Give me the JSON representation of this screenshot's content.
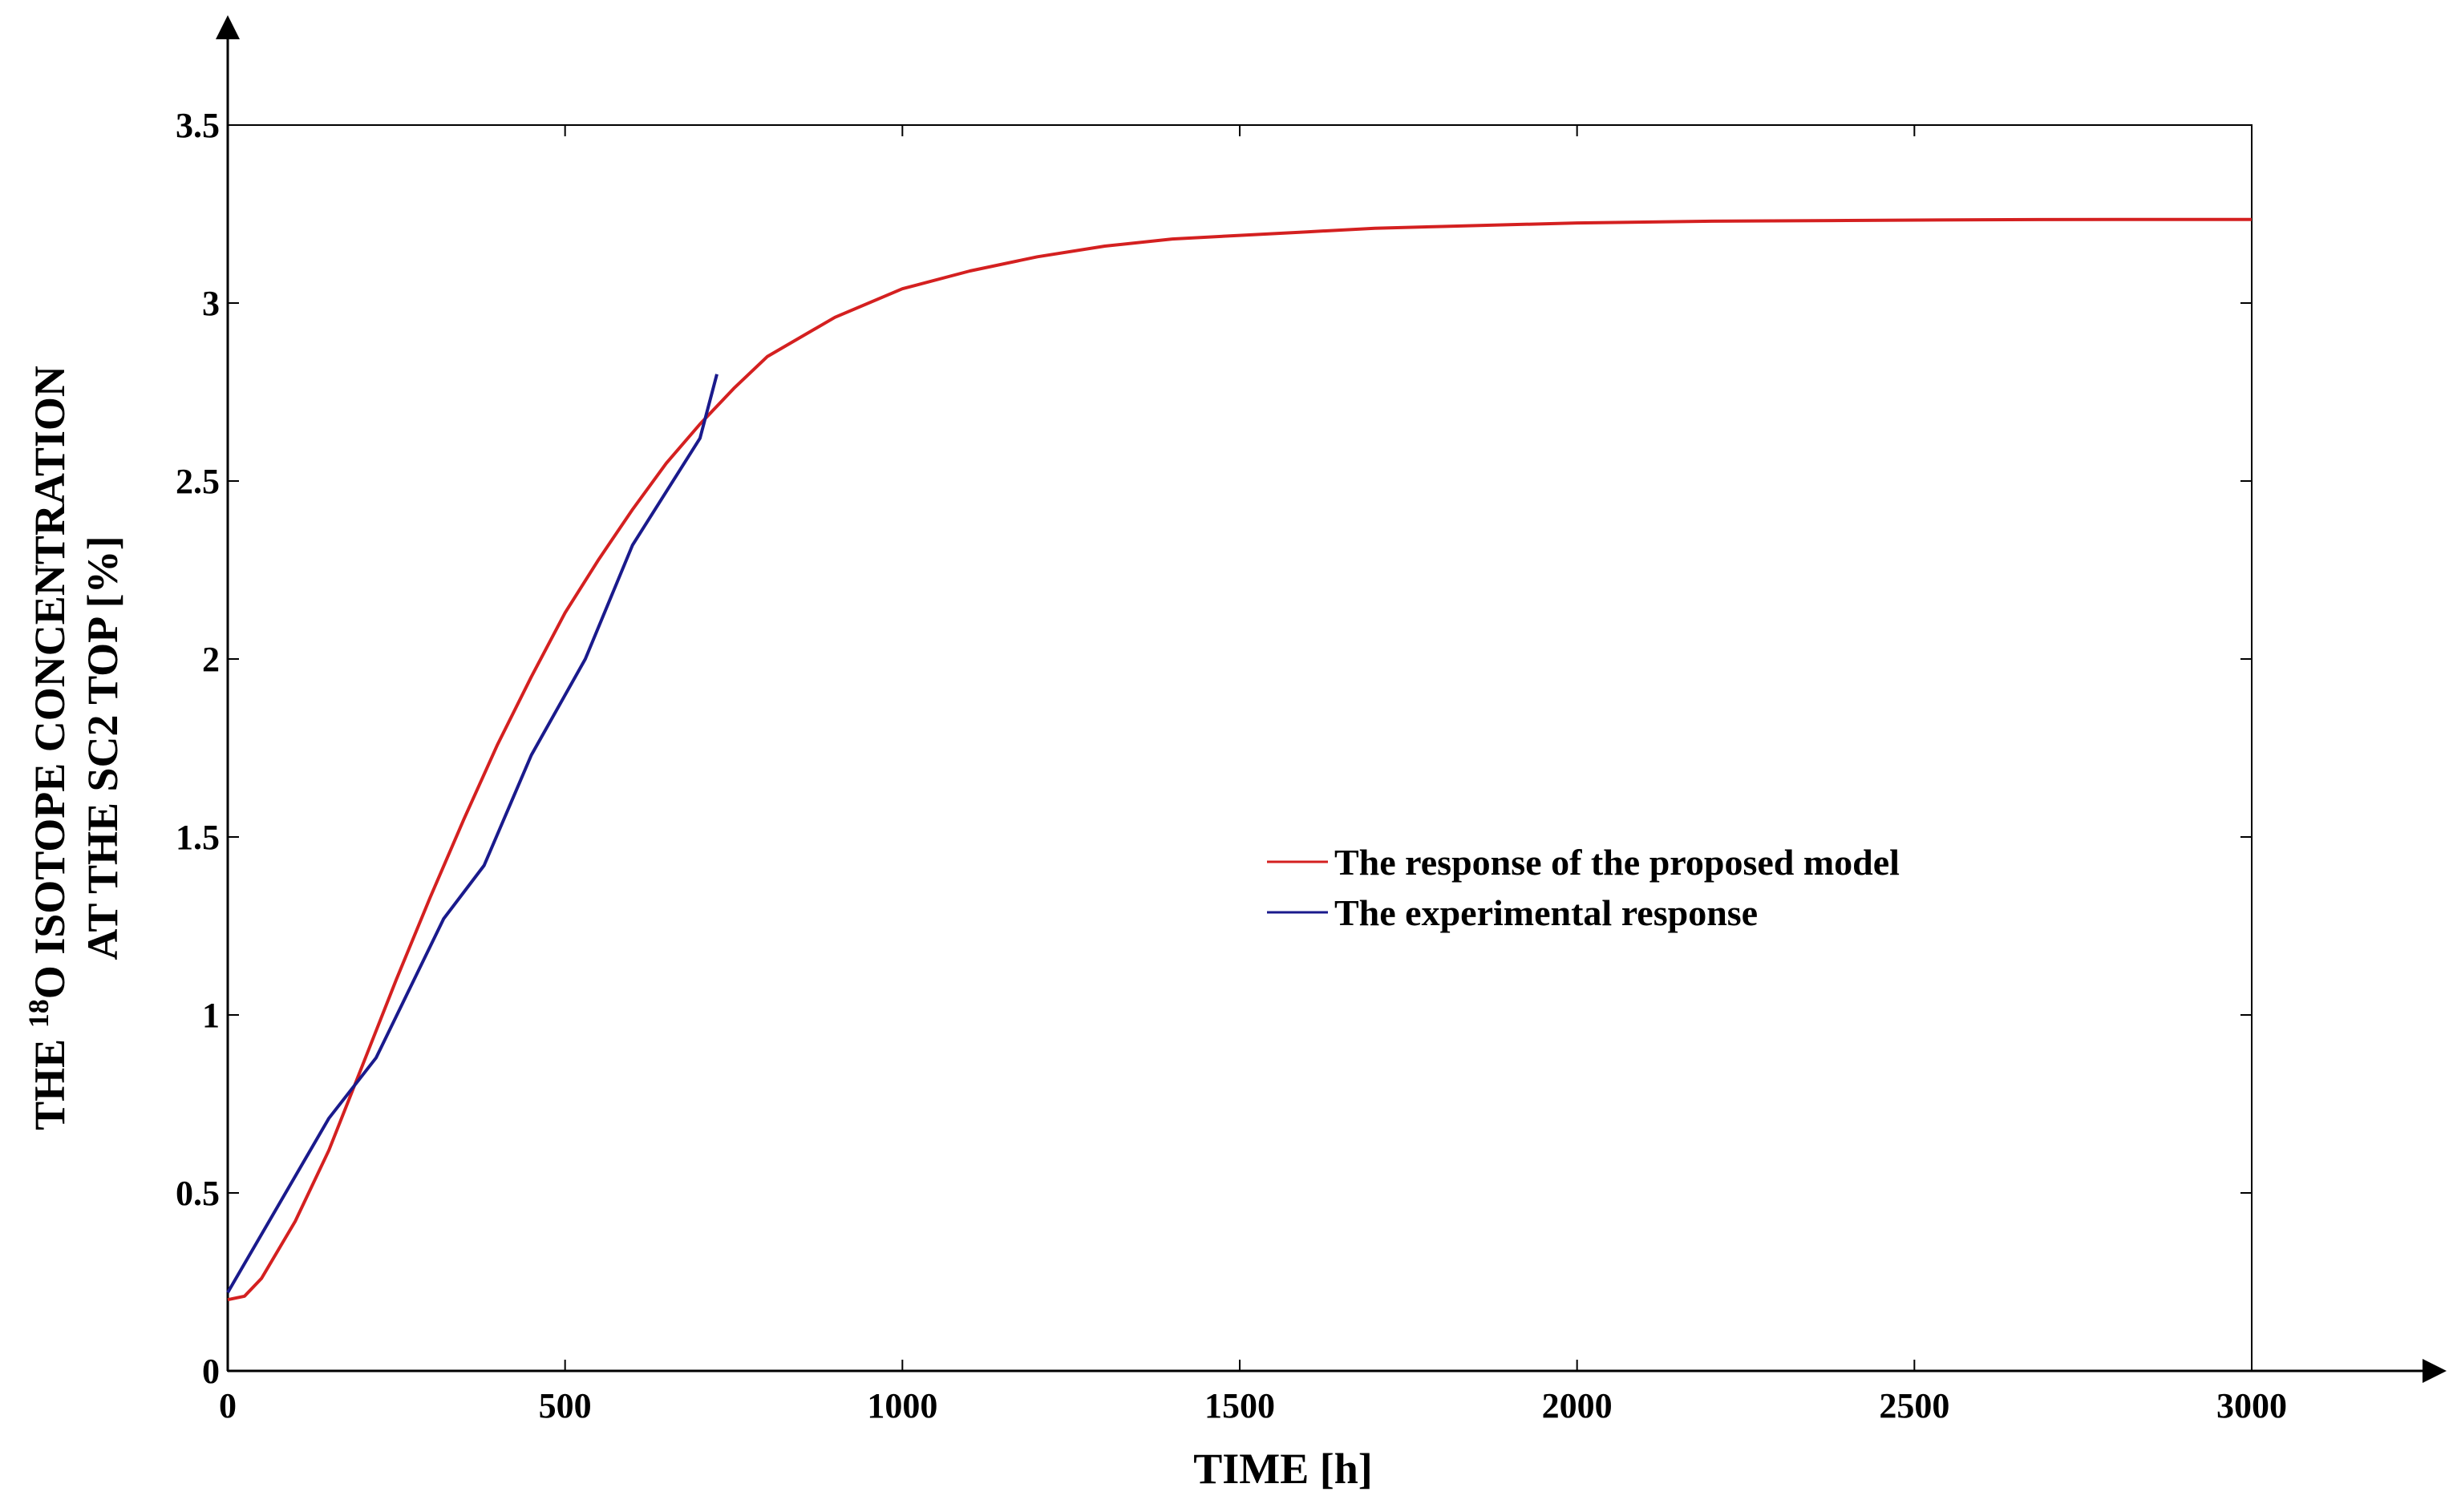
{
  "chart_data": {
    "type": "line",
    "xlabel": "TIME [h]",
    "ylabel": {
      "line1_prefix": "THE ",
      "line1_superscript": "18",
      "line1_rest": "O ISOTOPE CONCENTRATION",
      "line2": "AT THE SC2 TOP [%]"
    },
    "xlim": [
      0,
      3000
    ],
    "ylim": [
      0,
      3.5
    ],
    "x_ticks": [
      0,
      500,
      1000,
      1500,
      2000,
      2500,
      3000
    ],
    "y_ticks": [
      0,
      0.5,
      1,
      1.5,
      2,
      2.5,
      3,
      3.5
    ],
    "x_tick_labels": [
      "0",
      "500",
      "1000",
      "1500",
      "2000",
      "2500",
      "3000"
    ],
    "y_tick_labels": [
      "0",
      "0.5",
      "1",
      "1.5",
      "2",
      "2.5",
      "3",
      "3.5"
    ],
    "grid": false,
    "legend_position": "center-right",
    "series": [
      {
        "name": "The response of the proposed model",
        "color": "#d42020",
        "x": [
          0,
          25,
          50,
          100,
          150,
          200,
          250,
          300,
          350,
          400,
          450,
          500,
          550,
          600,
          650,
          700,
          750,
          800,
          900,
          1000,
          1100,
          1200,
          1300,
          1400,
          1500,
          1600,
          1700,
          1800,
          1900,
          2000,
          2200,
          2400,
          2600,
          2800,
          3000
        ],
        "y": [
          0.2,
          0.21,
          0.26,
          0.42,
          0.62,
          0.86,
          1.1,
          1.33,
          1.55,
          1.76,
          1.95,
          2.13,
          2.28,
          2.42,
          2.55,
          2.66,
          2.76,
          2.85,
          2.96,
          3.04,
          3.09,
          3.13,
          3.16,
          3.18,
          3.19,
          3.2,
          3.21,
          3.215,
          3.22,
          3.225,
          3.23,
          3.232,
          3.234,
          3.235,
          3.235
        ]
      },
      {
        "name": "The experimental response",
        "color": "#1a1a8c",
        "x": [
          0,
          150,
          220,
          320,
          380,
          450,
          530,
          600,
          700,
          725
        ],
        "y": [
          0.22,
          0.71,
          0.88,
          1.27,
          1.42,
          1.73,
          2.0,
          2.32,
          2.62,
          2.8
        ]
      }
    ]
  }
}
